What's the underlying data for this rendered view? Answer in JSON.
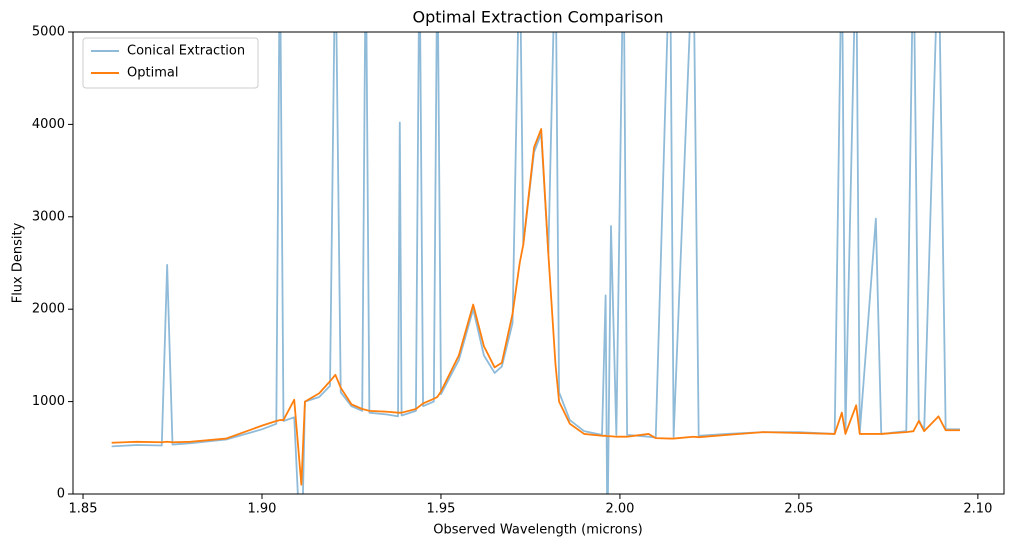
{
  "chart_data": {
    "type": "line",
    "title": "Optimal Extraction Comparison",
    "xlabel": "Observed Wavelength (microns)",
    "ylabel": "Flux Density",
    "x": [
      1.858,
      1.865,
      1.872,
      1.8735,
      1.875,
      1.88,
      1.89,
      1.9,
      1.904,
      1.905,
      1.906,
      1.909,
      1.911,
      1.912,
      1.916,
      1.919,
      1.9205,
      1.922,
      1.925,
      1.928,
      1.929,
      1.93,
      1.935,
      1.938,
      1.9385,
      1.939,
      1.943,
      1.944,
      1.945,
      1.948,
      1.949,
      1.95,
      1.955,
      1.959,
      1.962,
      1.965,
      1.967,
      1.97,
      1.972,
      1.973,
      1.976,
      1.978,
      1.98,
      1.982,
      1.983,
      1.986,
      1.99,
      1.995,
      1.996,
      1.9965,
      1.9975,
      1.999,
      2.001,
      2.002,
      2.008,
      2.01,
      2.014,
      2.015,
      2.0205,
      2.022,
      2.03,
      2.04,
      2.05,
      2.06,
      2.062,
      2.063,
      2.066,
      2.067,
      2.0715,
      2.073,
      2.08,
      2.082,
      2.0835,
      2.085,
      2.089,
      2.091,
      2.095
    ],
    "series": [
      {
        "name": "Conical Extraction",
        "color": "#1f77b4",
        "alpha": 0.5,
        "values": [
          515,
          530,
          525,
          2480,
          535,
          550,
          590,
          700,
          760,
          6000,
          790,
          830,
          -800,
          1000,
          1050,
          1170,
          6000,
          1100,
          950,
          900,
          6000,
          880,
          860,
          840,
          4020,
          850,
          900,
          6000,
          950,
          1000,
          6000,
          1080,
          1450,
          2000,
          1500,
          1310,
          1380,
          1850,
          6000,
          2700,
          3700,
          3900,
          2600,
          6000,
          1100,
          800,
          680,
          640,
          2150,
          -500,
          2900,
          640,
          6000,
          640,
          620,
          610,
          6000,
          620,
          6000,
          630,
          650,
          670,
          670,
          650,
          6000,
          660,
          6000,
          660,
          2980,
          650,
          680,
          6000,
          800,
          690,
          6000,
          700,
          700
        ]
      },
      {
        "name": "Optimal",
        "color": "#ff7f0e",
        "alpha": 1,
        "values": [
          555,
          565,
          560,
          565,
          560,
          565,
          600,
          740,
          790,
          800,
          800,
          1020,
          100,
          1000,
          1090,
          1220,
          1290,
          1150,
          970,
          920,
          910,
          900,
          890,
          880,
          880,
          880,
          920,
          950,
          980,
          1030,
          1050,
          1110,
          1500,
          2050,
          1600,
          1370,
          1420,
          1950,
          2500,
          2700,
          3750,
          3950,
          2600,
          1400,
          1000,
          760,
          650,
          630,
          630,
          625,
          625,
          620,
          620,
          620,
          650,
          605,
          600,
          600,
          620,
          615,
          640,
          670,
          660,
          650,
          880,
          650,
          960,
          650,
          650,
          650,
          670,
          680,
          790,
          680,
          840,
          690,
          690
        ]
      }
    ],
    "xlim": [
      1.8472,
      2.1073
    ],
    "xticks": [
      1.85,
      {
        "value": 1.9,
        "label": "1.90"
      },
      1.95,
      {
        "value": 2.0,
        "label": "2.00"
      },
      2.05,
      {
        "value": 2.1,
        "label": "2.10"
      }
    ],
    "ylim": [
      0,
      5000
    ],
    "yticks": [
      0,
      1000,
      2000,
      3000,
      4000,
      5000
    ],
    "legend": "upper left"
  }
}
